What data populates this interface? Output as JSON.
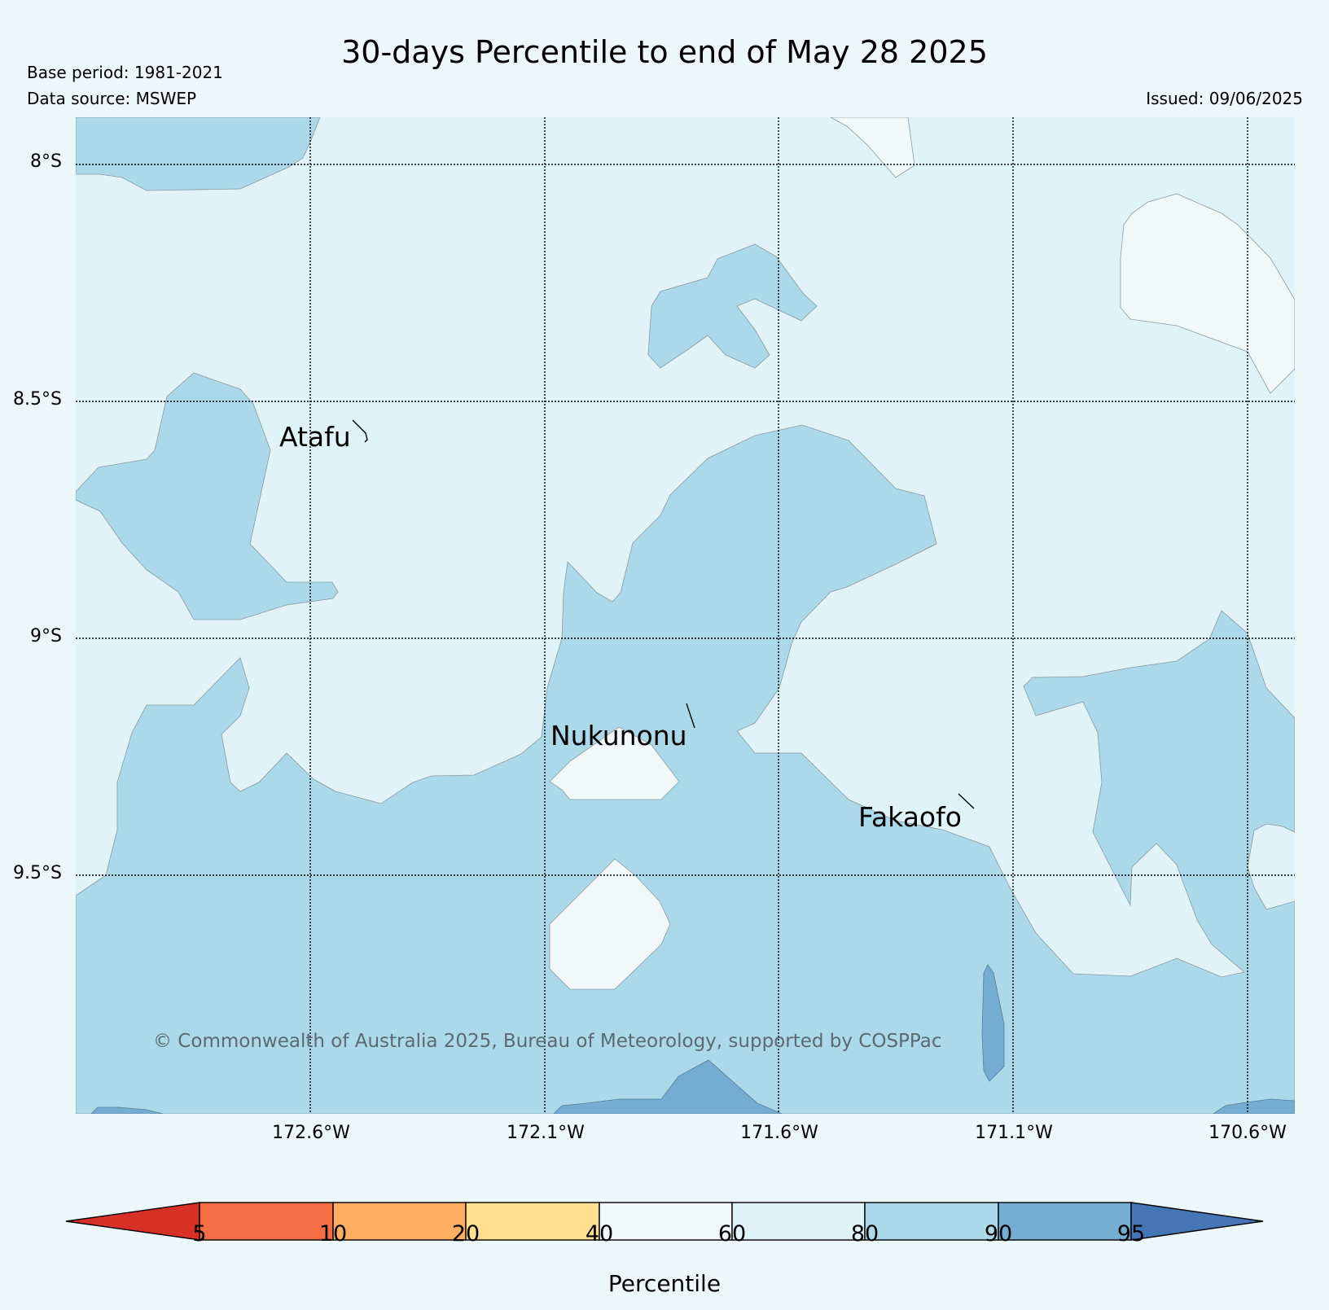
{
  "title": "30-days Percentile to end of May 28 2025",
  "base_period": "Base period: 1981-2021",
  "data_source": "Data source: MSWEP",
  "issued": "Issued: 09/06/2025",
  "lat_labels": [
    "8°S",
    "8.5°S",
    "9°S",
    "9.5°S"
  ],
  "lon_labels": [
    "172.6°W",
    "172.1°W",
    "171.6°W",
    "171.1°W",
    "170.6°W"
  ],
  "places": [
    "Atafu",
    "Nukunonu",
    "Fakaofo"
  ],
  "copyright": "© Commonwealth of Australia 2025, Bureau of Meteorology, supported by COSPPac",
  "colorbar": {
    "label": "Percentile",
    "ticks": [
      "5",
      "10",
      "20",
      "40",
      "60",
      "80",
      "90",
      "95"
    ],
    "colors": {
      "below5": "#d73027",
      "5-10": "#f46d43",
      "10-20": "#fdae61",
      "20-40": "#fee090",
      "40-60": "#f0f8fa",
      "60-80": "#e0f3f8",
      "80-90": "#abd9e9",
      "90-95": "#74add1",
      "above95": "#4575b4"
    }
  }
}
